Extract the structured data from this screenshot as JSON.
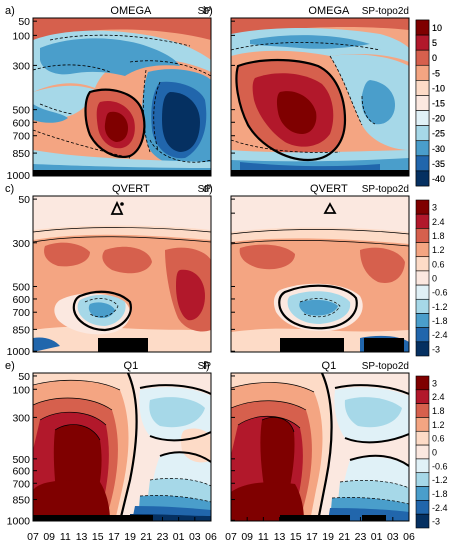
{
  "chart_data": [
    {
      "type": "heatmap",
      "panel_label": "a)",
      "title": "OMEGA",
      "subtitle": "SP",
      "y_ticks": [
        "50",
        "100",
        "300",
        "500",
        "600",
        "700",
        "850",
        "1000"
      ],
      "colorbar": [
        "10",
        "5",
        "0",
        "-5",
        "-10",
        "-15",
        "-20",
        "-25",
        "-30",
        "-35",
        "-40"
      ]
    },
    {
      "type": "heatmap",
      "panel_label": "b)",
      "title": "OMEGA",
      "subtitle": "SP-topo2d",
      "colorbar": [
        "10",
        "5",
        "0",
        "-5",
        "-10",
        "-15",
        "-20",
        "-25",
        "-30",
        "-35",
        "-40"
      ]
    },
    {
      "type": "heatmap",
      "panel_label": "c)",
      "title": "QVERT",
      "subtitle": "SP",
      "y_ticks": [
        "50",
        "300",
        "500",
        "600",
        "700",
        "850",
        "1000"
      ],
      "colorbar": [
        "3",
        "2.4",
        "1.8",
        "1.2",
        "0.6",
        "0",
        "-0.6",
        "-1.2",
        "-1.8",
        "-2.4",
        "-3"
      ]
    },
    {
      "type": "heatmap",
      "panel_label": "d)",
      "title": "QVERT",
      "subtitle": "SP-topo2d",
      "colorbar": [
        "3",
        "2.4",
        "1.8",
        "1.2",
        "0.6",
        "0",
        "-0.6",
        "-1.2",
        "-1.8",
        "-2.4",
        "-3"
      ]
    },
    {
      "type": "heatmap",
      "panel_label": "e)",
      "title": "Q1",
      "subtitle": "SP",
      "y_ticks": [
        "50",
        "100",
        "300",
        "500",
        "600",
        "700",
        "850",
        "1000"
      ],
      "x_ticks": [
        "07",
        "09",
        "11",
        "13",
        "15",
        "17",
        "19",
        "21",
        "23",
        "01",
        "03",
        "06"
      ],
      "colorbar": [
        "3",
        "2.4",
        "1.8",
        "1.2",
        "0.6",
        "0",
        "-0.6",
        "-1.2",
        "-1.8",
        "-2.4",
        "-3"
      ]
    },
    {
      "type": "heatmap",
      "panel_label": "f)",
      "title": "Q1",
      "subtitle": "SP-topo2d",
      "x_ticks": [
        "07",
        "09",
        "11",
        "13",
        "15",
        "17",
        "19",
        "21",
        "23",
        "01",
        "03",
        "06"
      ],
      "colorbar": [
        "3",
        "2.4",
        "1.8",
        "1.2",
        "0.6",
        "0",
        "-0.6",
        "-1.2",
        "-1.8",
        "-2.4",
        "-3"
      ]
    }
  ],
  "colors": {
    "dark_red": "#7f0000",
    "red": "#b2182b",
    "mid_red": "#d6604d",
    "salmon": "#f4a582",
    "light_pink": "#fddbc7",
    "pale": "#fbe8e0",
    "pale_blue": "#e0f1f7",
    "light_blue": "#a6d8e8",
    "mid_blue": "#4a9ecb",
    "blue": "#2166ac",
    "dark_blue": "#053061"
  }
}
